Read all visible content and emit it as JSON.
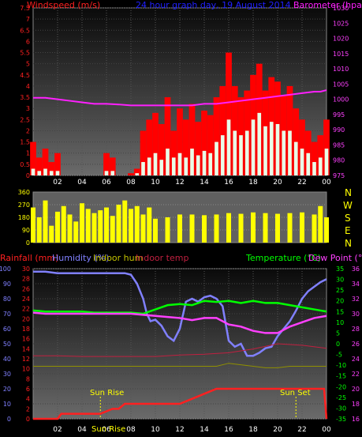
{
  "chart_data": [
    {
      "type": "bar",
      "panel": "wind-barometer",
      "title": "24 hour graph day, 19 August 2014",
      "left_axis_label": "Windspeed (m/s)",
      "right_axis_label": "Barometer (hpa)",
      "x_ticks": [
        "02",
        "04",
        "06",
        "08",
        "10",
        "12",
        "14",
        "16",
        "18",
        "20",
        "22",
        "00"
      ],
      "x_range_hours": [
        0,
        24
      ],
      "y_left_range": [
        0,
        7.5
      ],
      "y_left_ticks": [
        "0",
        "0.5",
        "1",
        "1.5",
        "2",
        "2.5",
        "3",
        "3.5",
        "4",
        "4.5",
        "5",
        "5.5",
        "6",
        "6.5",
        "7",
        "7.5"
      ],
      "y_right_range": [
        975,
        1030
      ],
      "y_right_ticks": [
        "975",
        "980",
        "985",
        "990",
        "995",
        "1000",
        "1005",
        "1010",
        "1015",
        "1020",
        "1025",
        "1030"
      ],
      "gust_hours": [
        0,
        0.5,
        1,
        1.5,
        2,
        3,
        4,
        5,
        6,
        6.5,
        7,
        7.5,
        8,
        8.5,
        9,
        9.5,
        10,
        10.5,
        11,
        11.5,
        12,
        12.5,
        13,
        13.5,
        14,
        14.5,
        15,
        15.5,
        16,
        16.5,
        17,
        17.5,
        18,
        18.5,
        19,
        19.5,
        20,
        20.5,
        21,
        21.5,
        22,
        22.5,
        23,
        23.5,
        24
      ],
      "gust_values": [
        1.5,
        0.8,
        1.2,
        0.6,
        1.0,
        0,
        0,
        0,
        1.0,
        0.8,
        0,
        0,
        0.1,
        0.3,
        2.0,
        2.5,
        2.8,
        2.3,
        3.5,
        2.0,
        3.0,
        2.5,
        3.2,
        2.4,
        2.9,
        2.7,
        3.5,
        4.0,
        5.5,
        4.0,
        3.5,
        3.8,
        4.5,
        5.0,
        3.8,
        4.4,
        4.2,
        3.6,
        4.0,
        3.0,
        2.5,
        2.0,
        1.5,
        1.8,
        2.5
      ],
      "average_values": [
        0.3,
        0.2,
        0.3,
        0.2,
        0.2,
        0,
        0,
        0,
        0.2,
        0.2,
        0,
        0,
        0,
        0.1,
        0.6,
        0.8,
        1.0,
        0.7,
        1.2,
        0.8,
        1.0,
        0.8,
        1.2,
        0.9,
        1.1,
        1.0,
        1.5,
        1.8,
        2.5,
        2.0,
        1.8,
        2.0,
        2.5,
        2.8,
        2.2,
        2.4,
        2.3,
        2.0,
        2.0,
        1.5,
        1.2,
        1.0,
        0.6,
        0.8,
        1.2
      ],
      "barometer_hours": [
        0,
        1,
        2,
        3,
        4,
        5,
        6,
        7,
        8,
        9,
        10,
        11,
        12,
        13,
        14,
        15,
        16,
        17,
        18,
        19,
        20,
        21,
        22,
        23,
        23.5,
        24
      ],
      "barometer_values": [
        1000.5,
        1000.5,
        1000,
        999.5,
        999,
        998.5,
        998.5,
        998.3,
        998,
        998,
        998,
        998,
        998,
        998,
        998.5,
        998.5,
        999,
        999.5,
        1000,
        1000.5,
        1001,
        1001.5,
        1002,
        1002.5,
        1002.5,
        1003
      ]
    },
    {
      "type": "scatter",
      "panel": "wind-direction",
      "y_range": [
        0,
        360
      ],
      "y_ticks": [
        "0",
        "90",
        "180",
        "270",
        "360"
      ],
      "compass_labels": [
        "N",
        "W",
        "S",
        "E",
        "N"
      ],
      "hours": [
        0,
        0.5,
        1,
        1.5,
        2,
        2.5,
        3,
        3.5,
        4,
        4.5,
        5,
        5.5,
        6,
        6.5,
        7,
        7.5,
        8,
        8.5,
        9,
        9.5,
        10,
        11,
        12,
        13,
        14,
        15,
        16,
        17,
        18,
        19,
        20,
        21,
        22,
        23,
        23.5,
        24
      ],
      "degrees": [
        250,
        180,
        300,
        120,
        220,
        260,
        200,
        150,
        280,
        240,
        210,
        230,
        250,
        190,
        270,
        300,
        240,
        260,
        200,
        250,
        170,
        180,
        200,
        200,
        195,
        200,
        210,
        205,
        215,
        210,
        205,
        210,
        215,
        200,
        260,
        180
      ]
    },
    {
      "type": "line",
      "panel": "temperature-humidity-rain",
      "labels": {
        "rainfall": "Rainfall (mm)",
        "humidity": "Humidity (%)",
        "indoor_humidity": "Indoor hum",
        "indoor_temp": "Indoor temp",
        "temperature": "Temperature (°C)",
        "dew_point": "Dew Point (°C)"
      },
      "sun_rise_label": "Sun Rise",
      "sun_set_label": "Sun Set",
      "sun_rise_hour": 5.5,
      "sun_set_hour": 21.5,
      "x_ticks": [
        "02",
        "04",
        "06",
        "08",
        "10",
        "12",
        "14",
        "16",
        "18",
        "20",
        "22",
        "00"
      ],
      "x_range_hours": [
        0,
        24
      ],
      "humidity_range": [
        0,
        100
      ],
      "humidity_ticks": [
        "0",
        "10",
        "20",
        "30",
        "40",
        "50",
        "60",
        "70",
        "80",
        "90",
        "100"
      ],
      "rain_range": [
        0,
        30
      ],
      "rain_ticks": [
        "0",
        "2",
        "4",
        "6",
        "8",
        "10",
        "12",
        "14",
        "16",
        "18",
        "20",
        "22",
        "24",
        "26",
        "28",
        "30"
      ],
      "temp_range": [
        -35,
        35
      ],
      "temp_ticks": [
        "-35",
        "-30",
        "-25",
        "-20",
        "-15",
        "-10",
        "-5",
        "0",
        "5",
        "10",
        "15",
        "20",
        "25",
        "30",
        "35"
      ],
      "indoor_range": [
        16,
        36
      ],
      "indoor_ticks": [
        "16",
        "18",
        "20",
        "22",
        "24",
        "26",
        "28",
        "30",
        "32",
        "34",
        "36"
      ],
      "series": [
        {
          "key": "humidity",
          "color": "#8080ff",
          "axis": "humidity",
          "hours": [
            0,
            1,
            2,
            3,
            4,
            5,
            6,
            7,
            7.5,
            8,
            8.5,
            9,
            9.3,
            9.6,
            10,
            10.5,
            11,
            11.5,
            12,
            12.5,
            13,
            13.5,
            14,
            14.5,
            15,
            15.5,
            16,
            16.5,
            17,
            17.5,
            18,
            18.5,
            19,
            19.5,
            20,
            20.5,
            21,
            21.5,
            22,
            22.5,
            23,
            23.5,
            24
          ],
          "values": [
            98,
            98,
            97,
            97,
            97,
            97,
            97,
            97,
            97,
            96,
            90,
            80,
            70,
            65,
            66,
            62,
            55,
            52,
            60,
            78,
            80,
            78,
            81,
            82,
            80,
            75,
            52,
            48,
            50,
            42,
            42,
            44,
            47,
            48,
            55,
            60,
            65,
            72,
            80,
            85,
            88,
            91,
            93
          ]
        },
        {
          "key": "temperature",
          "color": "#00ff00",
          "axis": "temp",
          "hours": [
            0,
            1,
            2,
            3,
            4,
            5,
            6,
            7,
            8,
            9,
            10,
            11,
            12,
            13,
            14,
            15,
            16,
            17,
            18,
            19,
            20,
            21,
            22,
            23,
            24
          ],
          "values": [
            15.5,
            15,
            15,
            15,
            15,
            14.5,
            14.5,
            14.5,
            14.5,
            14,
            16,
            18,
            18.5,
            18,
            20,
            19.5,
            20,
            19,
            20,
            19,
            19,
            18,
            17,
            16,
            15
          ]
        },
        {
          "key": "dew_point",
          "color": "#ff40ff",
          "axis": "temp",
          "hours": [
            0,
            1,
            2,
            3,
            4,
            5,
            6,
            7,
            8,
            9,
            10,
            11,
            12,
            13,
            14,
            15,
            16,
            17,
            18,
            19,
            20,
            21,
            22,
            23,
            24
          ],
          "values": [
            14.5,
            14,
            14,
            14,
            14,
            14,
            14,
            14,
            14,
            13.5,
            13,
            12.5,
            12,
            11,
            12,
            12,
            9,
            8,
            6,
            5,
            5,
            8,
            10,
            12,
            13
          ]
        },
        {
          "key": "indoor_temp",
          "color": "#c02040",
          "axis": "indoor",
          "hours": [
            0,
            2,
            4,
            6,
            8,
            10,
            12,
            14,
            16,
            18,
            20,
            22,
            24
          ],
          "values": [
            24.4,
            24.4,
            24.3,
            24.3,
            24.3,
            24.3,
            24.5,
            24.6,
            24.8,
            25.3,
            26.0,
            25.8,
            25.4
          ]
        },
        {
          "key": "indoor_humidity",
          "color": "#909000",
          "axis": "humidity",
          "hours": [
            0,
            2,
            4,
            6,
            8,
            10,
            12,
            14,
            15,
            16,
            17,
            18,
            19,
            20,
            21,
            22,
            23,
            24
          ],
          "values": [
            35,
            35,
            35,
            35,
            35,
            35,
            35,
            35,
            35,
            37,
            36,
            35,
            34,
            34,
            35,
            35,
            35,
            35
          ]
        },
        {
          "key": "rainfall",
          "color": "#ff2020",
          "axis": "rain",
          "hours": [
            0,
            2,
            2.3,
            5.5,
            6.5,
            7,
            7.5,
            12,
            13,
            14,
            15,
            23.5,
            23.8,
            24
          ],
          "values": [
            0,
            0,
            1,
            1,
            2,
            2,
            3,
            3,
            4,
            5,
            6,
            6,
            6,
            0
          ]
        }
      ]
    }
  ]
}
